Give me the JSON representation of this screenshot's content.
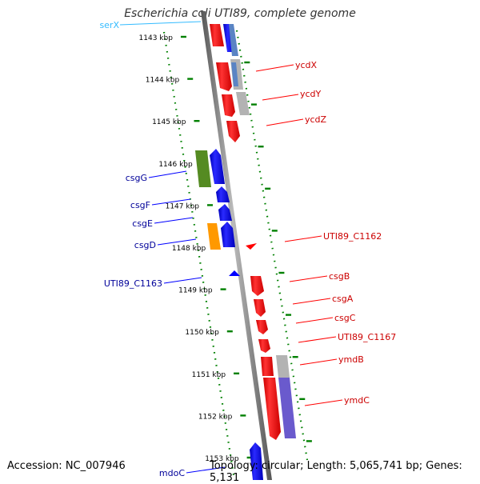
{
  "title": "Escherichia coli UTI89, complete genome",
  "footer": {
    "accession": "Accession: NC_007946",
    "summary": "Topology: circular; Length: 5,065,741 bp; Genes: 5,131"
  },
  "colors": {
    "forward_cds": "#ff0000",
    "reverse_cds": "#0000ff",
    "trna": "#33bbff",
    "cog_green": "#558b22",
    "cog_orange": "#ff9900",
    "cog_grey": "#b3b3b3",
    "cog_steel": "#5a84c4",
    "cog_purple": "#6a5acd",
    "axis": "#888888",
    "tick_dots": "#008000"
  },
  "map": {
    "start_kbp": 1143,
    "end_kbp": 1153,
    "ticks": [
      {
        "kbp": 1143,
        "label": "1143 kbp"
      },
      {
        "kbp": 1144,
        "label": "1144 kbp"
      },
      {
        "kbp": 1145,
        "label": "1145 kbp"
      },
      {
        "kbp": 1146,
        "label": "1146 kbp"
      },
      {
        "kbp": 1147,
        "label": "1147 kbp"
      },
      {
        "kbp": 1148,
        "label": "1148 kbp"
      },
      {
        "kbp": 1149,
        "label": "1149 kbp"
      },
      {
        "kbp": 1150,
        "label": "1150 kbp"
      },
      {
        "kbp": 1151,
        "label": "1151 kbp"
      },
      {
        "kbp": 1152,
        "label": "1152 kbp"
      },
      {
        "kbp": 1153,
        "label": "1153 kbp"
      }
    ],
    "forward_labels": [
      "ycdX",
      "ycdY",
      "ycdZ",
      "UTI89_C1162",
      "csgB",
      "csgA",
      "csgC",
      "UTI89_C1167",
      "ymdB",
      "ymdC"
    ],
    "reverse_labels": [
      "serX",
      "csgG",
      "csgF",
      "csgE",
      "csgD",
      "UTI89_C1163",
      "mdoC"
    ]
  }
}
